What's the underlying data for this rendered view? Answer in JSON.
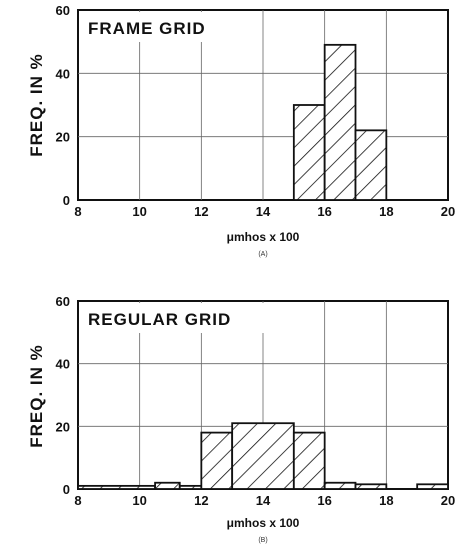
{
  "chart_data": [
    {
      "type": "bar",
      "title": "FRAME GRID",
      "ylabel": "FREQ. IN %",
      "xlabel": "μmhos x 100",
      "panel_label": "(A)",
      "xlim": [
        8,
        20
      ],
      "ylim": [
        0,
        60
      ],
      "xticks": [
        "8",
        "10",
        "12",
        "14",
        "16",
        "18",
        "20"
      ],
      "yticks": [
        "0",
        "20",
        "40",
        "60"
      ],
      "bins": [
        {
          "x0": 15,
          "x1": 16,
          "value": 30
        },
        {
          "x0": 16,
          "x1": 17,
          "value": 49
        },
        {
          "x0": 17,
          "x1": 18,
          "value": 22
        }
      ]
    },
    {
      "type": "bar",
      "title": "REGULAR GRID",
      "ylabel": "FREQ. IN %",
      "xlabel": "μmhos x 100",
      "panel_label": "(B)",
      "xlim": [
        8,
        20
      ],
      "ylim": [
        0,
        60
      ],
      "xticks": [
        "8",
        "10",
        "12",
        "14",
        "16",
        "18",
        "20"
      ],
      "yticks": [
        "0",
        "20",
        "40",
        "60"
      ],
      "bins": [
        {
          "x0": 8,
          "x1": 10.5,
          "value": 1
        },
        {
          "x0": 10.5,
          "x1": 11.3,
          "value": 2
        },
        {
          "x0": 11.3,
          "x1": 12,
          "value": 1
        },
        {
          "x0": 12,
          "x1": 13,
          "value": 18
        },
        {
          "x0": 13,
          "x1": 15,
          "value": 21
        },
        {
          "x0": 15,
          "x1": 16,
          "value": 18
        },
        {
          "x0": 16,
          "x1": 17,
          "value": 2
        },
        {
          "x0": 17,
          "x1": 18,
          "value": 1.5
        },
        {
          "x0": 19,
          "x1": 20,
          "value": 1.5
        }
      ]
    }
  ]
}
